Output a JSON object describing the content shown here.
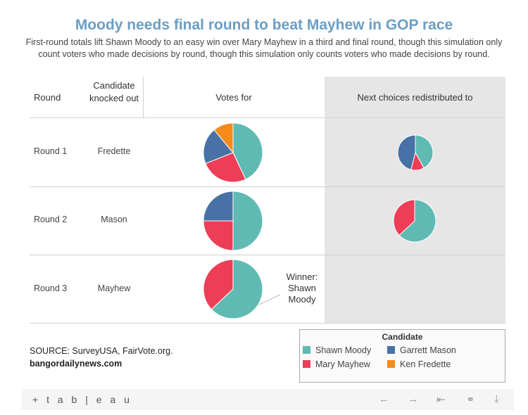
{
  "title": "Moody needs final round to beat Mayhew in GOP race",
  "subtitle": "First-round totals lift Shawn Moody to an easy win over Mary Mayhew in a third and final round, though this simulation only count voters who made decisions by round, though this simulation only counts voters who made decisions by round.",
  "headers": {
    "round": "Round",
    "knocked_out": "Candidate knocked out",
    "votes_for": "Votes for",
    "next_choices": "Next choices redistributed to"
  },
  "rows": [
    {
      "round": "Round 1",
      "candidate": "Fredette"
    },
    {
      "round": "Round 2",
      "candidate": "Mason"
    },
    {
      "round": "Round 3",
      "candidate": "Mayhew"
    }
  ],
  "callout": "Winner: Shawn Moody",
  "source": {
    "line1": "SOURCE: SurveyUSA, FairVote.org.",
    "line2": "bangordailynews.com"
  },
  "legend": {
    "title": "Candidate",
    "items": [
      {
        "name": "Shawn Moody",
        "color": "#5fbab3"
      },
      {
        "name": "Garrett Mason",
        "color": "#4872a5"
      },
      {
        "name": "Mary Mayhew",
        "color": "#ee3d56"
      },
      {
        "name": "Ken Fredette",
        "color": "#f68a1b"
      }
    ]
  },
  "footer": {
    "logo": "+ t a b | e a u"
  },
  "chart_data": {
    "type": "pie",
    "title": "Moody needs final round to beat Mayhew in GOP race",
    "colors": {
      "Shawn Moody": "#5fbab3",
      "Garrett Mason": "#4872a5",
      "Mary Mayhew": "#ee3d56",
      "Ken Fredette": "#f68a1b"
    },
    "pies": [
      {
        "row": "Round 1",
        "column": "Votes for",
        "slices": [
          {
            "label": "Shawn Moody",
            "value": 43
          },
          {
            "label": "Mary Mayhew",
            "value": 26
          },
          {
            "label": "Garrett Mason",
            "value": 20
          },
          {
            "label": "Ken Fredette",
            "value": 11
          }
        ]
      },
      {
        "row": "Round 1",
        "column": "Next choices redistributed to",
        "slices": [
          {
            "label": "Shawn Moody",
            "value": 42
          },
          {
            "label": "Mary Mayhew",
            "value": 12
          },
          {
            "label": "Garrett Mason",
            "value": 46
          }
        ]
      },
      {
        "row": "Round 2",
        "column": "Votes for",
        "slices": [
          {
            "label": "Shawn Moody",
            "value": 50
          },
          {
            "label": "Mary Mayhew",
            "value": 25
          },
          {
            "label": "Garrett Mason",
            "value": 25
          }
        ]
      },
      {
        "row": "Round 2",
        "column": "Next choices redistributed to",
        "slices": [
          {
            "label": "Shawn Moody",
            "value": 63
          },
          {
            "label": "Mary Mayhew",
            "value": 37
          }
        ]
      },
      {
        "row": "Round 3",
        "column": "Votes for",
        "slices": [
          {
            "label": "Shawn Moody",
            "value": 63
          },
          {
            "label": "Mary Mayhew",
            "value": 37
          }
        ]
      }
    ]
  }
}
